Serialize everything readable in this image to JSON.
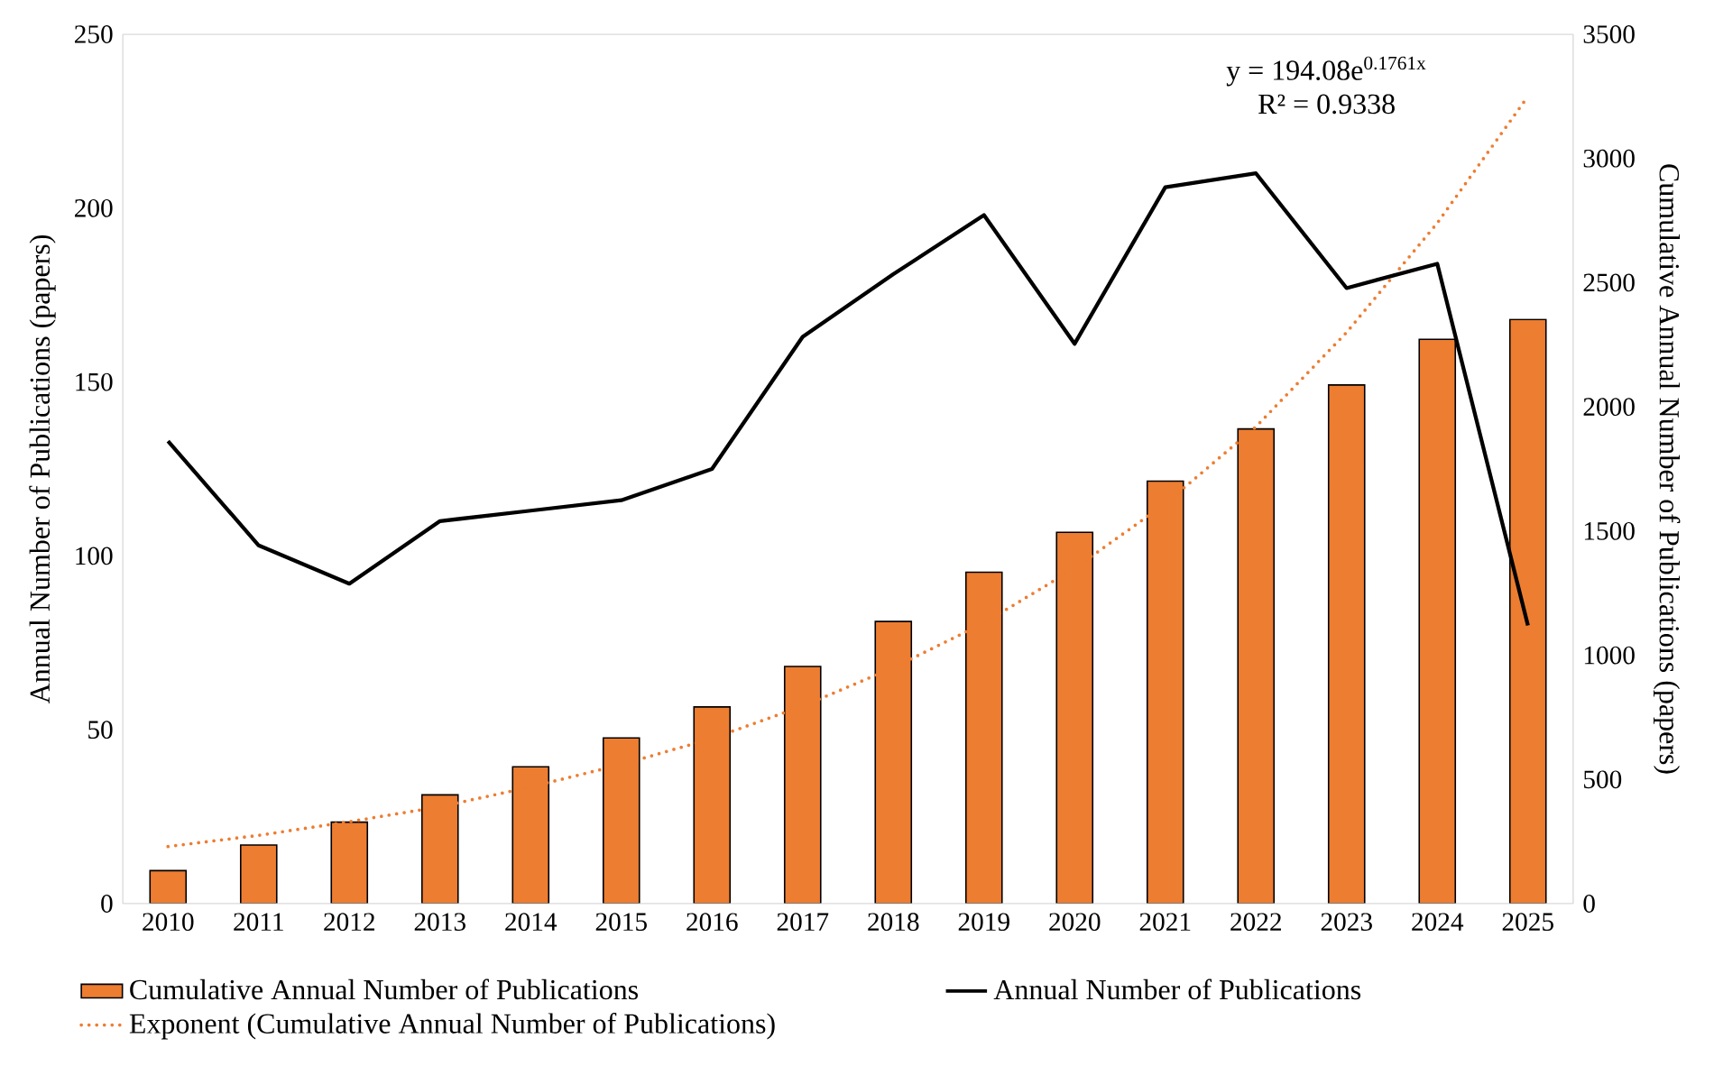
{
  "chart_data": {
    "type": "bar",
    "categories": [
      "2010",
      "2011",
      "2012",
      "2013",
      "2014",
      "2015",
      "2016",
      "2017",
      "2018",
      "2019",
      "2020",
      "2021",
      "2022",
      "2023",
      "2024",
      "2025"
    ],
    "ylabel": "Annual Number of Publications (papers)",
    "y2label": "Cumulative Annual Number of Publications (papers)",
    "ylim": [
      0,
      250
    ],
    "yticks": [
      0,
      50,
      100,
      150,
      200,
      250
    ],
    "y2lim": [
      0,
      3500
    ],
    "y2ticks": [
      0,
      500,
      1000,
      1500,
      2000,
      2500,
      3000,
      3500
    ],
    "legend": "bottom",
    "annotations": [
      "y = 194.08e$^{0.1761x}$",
      "R² = 0.9338"
    ],
    "series": [
      {
        "name": "Cumulative Annual Number of Publications",
        "axis": "y2",
        "color": "#ed7d31",
        "values": [
          133,
          236,
          328,
          438,
          551,
          667,
          792,
          955,
          1136,
          1334,
          1495,
          1701,
          1911,
          2088,
          2272,
          2352
        ]
      },
      {
        "name": "Annual Number of Publications",
        "type": "line",
        "axis": "y",
        "color": "#000000",
        "line_style": "solid",
        "values": [
          133,
          103,
          92,
          110,
          113,
          116,
          125,
          163,
          181,
          198,
          161,
          206,
          210,
          177,
          184,
          80
        ]
      },
      {
        "name": "Exponent (Cumulative Annual Number of Publications)",
        "type": "line",
        "axis": "y2",
        "color": "#ed7d31",
        "line_style": "dotted",
        "values": [
          230,
          275,
          330,
          390,
          470,
          560,
          665,
          795,
          950,
          1130,
          1350,
          1610,
          1920,
          2300,
          2740,
          3250
        ]
      }
    ]
  }
}
